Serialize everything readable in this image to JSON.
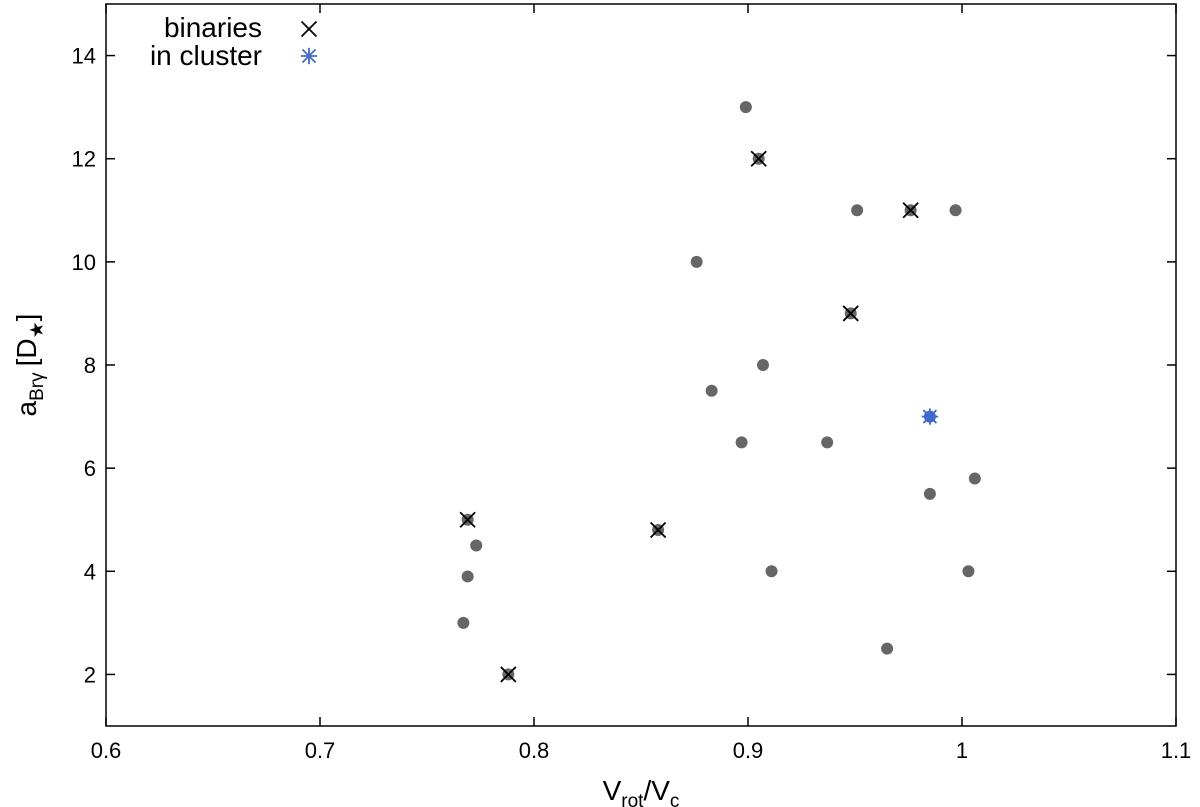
{
  "chart_data": {
    "type": "scatter",
    "title": "",
    "xlabel": {
      "main": "V",
      "sub1": "rot",
      "sep": "/V",
      "sub2": "c"
    },
    "ylabel": {
      "main": "a",
      "sub": "Brγ",
      "open": "[D",
      "sub_symbol": "★",
      "close": "]"
    },
    "xlim": [
      0.6,
      1.1
    ],
    "ylim": [
      1,
      15
    ],
    "xticks": [
      0.6,
      0.7,
      0.8,
      0.9,
      1,
      1.1
    ],
    "xtick_labels": [
      "0.6",
      "0.7",
      "0.8",
      "0.9",
      "1",
      "1.1"
    ],
    "yticks": [
      2,
      4,
      6,
      8,
      10,
      12,
      14
    ],
    "ytick_labels": [
      "2",
      "4",
      "6",
      "8",
      "10",
      "12",
      "14"
    ],
    "grid": false,
    "legend_position": "top-left",
    "legend": [
      {
        "label": "binaries",
        "marker": "x",
        "color": "#000000"
      },
      {
        "label": "in cluster",
        "marker": "asterisk",
        "color": "#4169c9"
      }
    ],
    "colors": {
      "points": "#666666",
      "binaries": "#000000",
      "cluster": "#4169c9"
    },
    "points": [
      {
        "x": 0.899,
        "y": 13
      },
      {
        "x": 0.905,
        "y": 12,
        "binary": true
      },
      {
        "x": 0.951,
        "y": 11
      },
      {
        "x": 0.976,
        "y": 11,
        "binary": true
      },
      {
        "x": 0.997,
        "y": 11
      },
      {
        "x": 0.876,
        "y": 10
      },
      {
        "x": 0.948,
        "y": 9,
        "binary": true
      },
      {
        "x": 0.907,
        "y": 8
      },
      {
        "x": 0.883,
        "y": 7.5
      },
      {
        "x": 0.985,
        "y": 7,
        "cluster": true
      },
      {
        "x": 0.897,
        "y": 6.5
      },
      {
        "x": 0.937,
        "y": 6.5
      },
      {
        "x": 1.006,
        "y": 5.8
      },
      {
        "x": 0.985,
        "y": 5.5
      },
      {
        "x": 0.769,
        "y": 5,
        "binary": true
      },
      {
        "x": 0.858,
        "y": 4.8,
        "binary": true
      },
      {
        "x": 0.773,
        "y": 4.5
      },
      {
        "x": 0.769,
        "y": 3.9
      },
      {
        "x": 0.911,
        "y": 4
      },
      {
        "x": 1.003,
        "y": 4
      },
      {
        "x": 0.767,
        "y": 3
      },
      {
        "x": 0.965,
        "y": 2.5
      },
      {
        "x": 0.788,
        "y": 2,
        "binary": true
      }
    ]
  }
}
